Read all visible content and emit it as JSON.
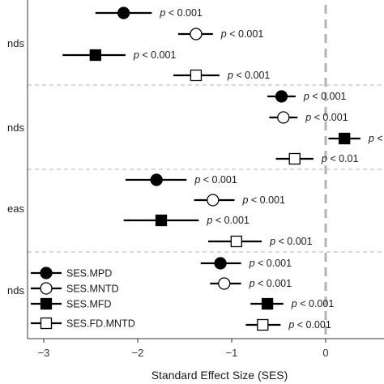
{
  "chart_data": {
    "type": "dot-whisker",
    "xlabel": "Standard Effect Size (SES)",
    "x_ticks": [
      -3,
      -2,
      -1,
      0
    ],
    "xlim": [
      -3.4,
      0.6
    ],
    "reference_line_x": 0,
    "groups": [
      {
        "label": "nds",
        "rows": [
          {
            "series": "SES.MPD",
            "est": -2.15,
            "lo": -2.45,
            "hi": -1.85,
            "annotation_prefix": "p",
            "annotation": " < 0.001"
          },
          {
            "series": "SES.MNTD",
            "est": -1.38,
            "lo": -1.57,
            "hi": -1.2,
            "annotation_prefix": "p",
            "annotation": " < 0.001"
          },
          {
            "series": "SES.MFD",
            "est": -2.45,
            "lo": -2.8,
            "hi": -2.13,
            "annotation_prefix": "p",
            "annotation": " < 0.001"
          },
          {
            "series": "SES.FD.MNTD",
            "est": -1.38,
            "lo": -1.62,
            "hi": -1.13,
            "annotation_prefix": "p",
            "annotation": " < 0.001"
          }
        ]
      },
      {
        "label": "nds",
        "rows": [
          {
            "series": "SES.MPD",
            "est": -0.47,
            "lo": -0.62,
            "hi": -0.32,
            "annotation_prefix": "p",
            "annotation": " < 0.001"
          },
          {
            "series": "SES.MNTD",
            "est": -0.45,
            "lo": -0.6,
            "hi": -0.3,
            "annotation_prefix": "p",
            "annotation": " < 0.001"
          },
          {
            "series": "SES.MFD",
            "est": 0.2,
            "lo": 0.03,
            "hi": 0.37,
            "annotation_prefix": "p",
            "annotation": " <"
          },
          {
            "series": "SES.FD.MNTD",
            "est": -0.33,
            "lo": -0.53,
            "hi": -0.13,
            "annotation_prefix": "p",
            "annotation": " < 0.01"
          }
        ]
      },
      {
        "label": "eas",
        "rows": [
          {
            "series": "SES.MPD",
            "est": -1.8,
            "lo": -2.13,
            "hi": -1.48,
            "annotation_prefix": "p",
            "annotation": " < 0.001"
          },
          {
            "series": "SES.MNTD",
            "est": -1.2,
            "lo": -1.4,
            "hi": -0.97,
            "annotation_prefix": "p",
            "annotation": " < 0.001"
          },
          {
            "series": "SES.MFD",
            "est": -1.75,
            "lo": -2.15,
            "hi": -1.35,
            "annotation_prefix": "p",
            "annotation": " < 0.001"
          },
          {
            "series": "SES.FD.MNTD",
            "est": -0.95,
            "lo": -1.25,
            "hi": -0.68,
            "annotation_prefix": "p",
            "annotation": " < 0.001"
          }
        ]
      },
      {
        "label": "nds",
        "rows": [
          {
            "series": "SES.MPD",
            "est": -1.12,
            "lo": -1.33,
            "hi": -0.9,
            "annotation_prefix": "p",
            "annotation": " < 0.001"
          },
          {
            "series": "SES.MNTD",
            "est": -1.08,
            "lo": -1.23,
            "hi": -0.9,
            "annotation_prefix": "p",
            "annotation": " < 0.001"
          },
          {
            "series": "SES.MFD",
            "est": -0.62,
            "lo": -0.8,
            "hi": -0.45,
            "annotation_prefix": "p",
            "annotation": " < 0.001"
          },
          {
            "series": "SES.FD.MNTD",
            "est": -0.67,
            "lo": -0.85,
            "hi": -0.48,
            "annotation_prefix": "p",
            "annotation": " < 0.001"
          }
        ]
      }
    ],
    "legend": [
      {
        "label": "SES.MPD",
        "marker": "circle",
        "fill": "#000000"
      },
      {
        "label": "SES.MNTD",
        "marker": "circle",
        "fill": "#ffffff"
      },
      {
        "label": "SES.MFD",
        "marker": "square",
        "fill": "#000000"
      },
      {
        "label": "SES.FD.MNTD",
        "marker": "square",
        "fill": "#ffffff"
      }
    ],
    "legend_position": "bottom-left",
    "colors": {
      "marker_stroke": "#000000",
      "reference_line": "#b3b3b3",
      "separator": "#b3b3b3",
      "axis": "#333333"
    }
  }
}
